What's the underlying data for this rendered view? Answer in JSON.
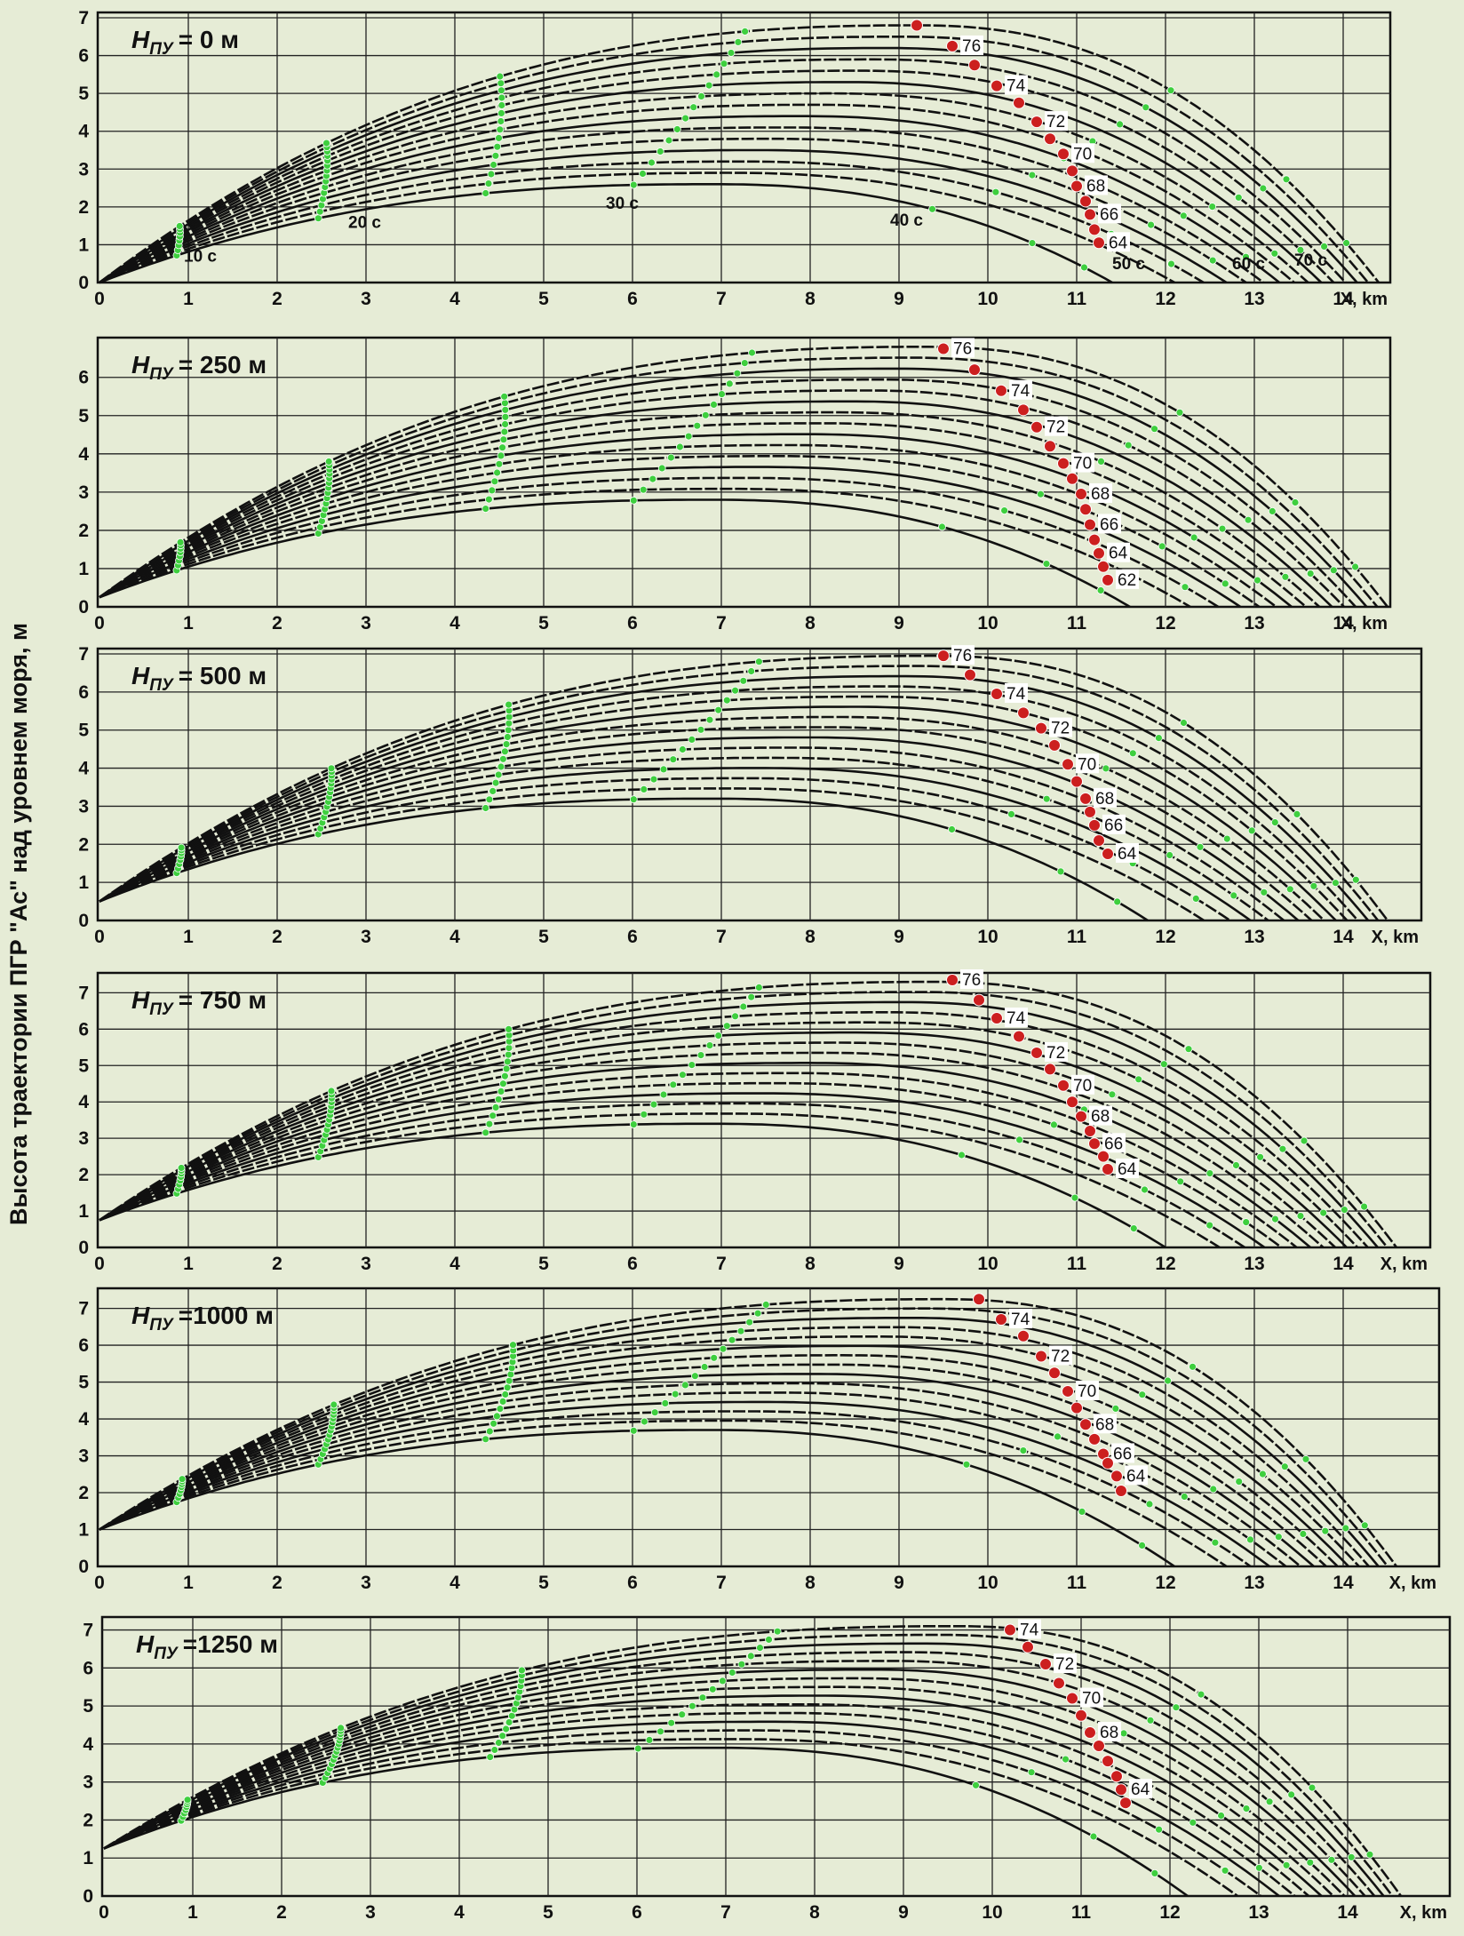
{
  "chart_data": {
    "type": "line",
    "y_axis_label": "Высота траектории ПГР \"Ас\" над уровнем моря, м",
    "xlabel": "X, km",
    "colors": {
      "background": "#e6ecd6",
      "trajectory": "#111111",
      "time_marker": "#3ecf3e",
      "angle_marker": "#cc1f1f"
    },
    "panels": [
      {
        "title_prefix": "H",
        "title_sub": "ПУ",
        "title_value": "= 0 м",
        "x_ticks": [
          "0",
          "1",
          "2",
          "3",
          "4",
          "5",
          "6",
          "7",
          "8",
          "9",
          "10",
          "11",
          "12",
          "13",
          "14"
        ],
        "y_ticks": [
          "0",
          "1",
          "2",
          "3",
          "4",
          "5",
          "6",
          "7"
        ],
        "xlim": [
          0,
          14.6
        ],
        "ylim": [
          0,
          7
        ],
        "start_height": 0,
        "curve_count": 15,
        "apex": {
          "x_min": 6.9,
          "x_max": 9.2,
          "y_min": 2.6,
          "y_max": 6.8
        },
        "range": {
          "min": 11.4,
          "max": 14.4
        },
        "angle_markers": [
          {
            "x": 9.2,
            "y": 6.8,
            "label": ""
          },
          {
            "x": 9.6,
            "y": 6.25,
            "label": "76"
          },
          {
            "x": 9.85,
            "y": 5.75,
            "label": ""
          },
          {
            "x": 10.1,
            "y": 5.2,
            "label": "74"
          },
          {
            "x": 10.35,
            "y": 4.75,
            "label": ""
          },
          {
            "x": 10.55,
            "y": 4.25,
            "label": "72"
          },
          {
            "x": 10.7,
            "y": 3.8,
            "label": ""
          },
          {
            "x": 10.85,
            "y": 3.4,
            "label": "70"
          },
          {
            "x": 10.95,
            "y": 2.95,
            "label": ""
          },
          {
            "x": 11.0,
            "y": 2.55,
            "label": "68"
          },
          {
            "x": 11.1,
            "y": 2.15,
            "label": ""
          },
          {
            "x": 11.15,
            "y": 1.8,
            "label": "66"
          },
          {
            "x": 11.2,
            "y": 1.4,
            "label": ""
          },
          {
            "x": 11.25,
            "y": 1.05,
            "label": "64"
          }
        ],
        "time_labels": [
          {
            "text": "10 с",
            "x": 0.95,
            "y": 0.55
          },
          {
            "text": "20 с",
            "x": 2.8,
            "y": 1.45
          },
          {
            "text": "30 с",
            "x": 5.7,
            "y": 1.95
          },
          {
            "text": "40 с",
            "x": 8.9,
            "y": 1.5
          },
          {
            "text": "50 с",
            "x": 11.4,
            "y": 0.35
          },
          {
            "text": "60 с",
            "x": 12.75,
            "y": 0.35
          },
          {
            "text": "70 с",
            "x": 13.45,
            "y": 0.45
          }
        ]
      },
      {
        "title_prefix": "H",
        "title_sub": "ПУ",
        "title_value": "= 250 м",
        "x_ticks": [
          "0",
          "1",
          "2",
          "3",
          "4",
          "5",
          "6",
          "7",
          "8",
          "9",
          "10",
          "11",
          "12",
          "13",
          "14"
        ],
        "y_ticks": [
          "0",
          "1",
          "2",
          "3",
          "4",
          "5",
          "6"
        ],
        "xlim": [
          0,
          14.6
        ],
        "ylim": [
          0,
          6.9
        ],
        "start_height": 0.25,
        "curve_count": 15,
        "apex": {
          "x_min": 6.9,
          "x_max": 9.3,
          "y_min": 2.8,
          "y_max": 6.8
        },
        "range": {
          "min": 11.6,
          "max": 14.5
        },
        "angle_markers": [
          {
            "x": 9.5,
            "y": 6.75,
            "label": "76"
          },
          {
            "x": 9.85,
            "y": 6.2,
            "label": ""
          },
          {
            "x": 10.15,
            "y": 5.65,
            "label": "74"
          },
          {
            "x": 10.4,
            "y": 5.15,
            "label": ""
          },
          {
            "x": 10.55,
            "y": 4.7,
            "label": "72"
          },
          {
            "x": 10.7,
            "y": 4.2,
            "label": ""
          },
          {
            "x": 10.85,
            "y": 3.75,
            "label": "70"
          },
          {
            "x": 10.95,
            "y": 3.35,
            "label": ""
          },
          {
            "x": 11.05,
            "y": 2.95,
            "label": "68"
          },
          {
            "x": 11.1,
            "y": 2.55,
            "label": ""
          },
          {
            "x": 11.15,
            "y": 2.15,
            "label": "66"
          },
          {
            "x": 11.2,
            "y": 1.75,
            "label": ""
          },
          {
            "x": 11.25,
            "y": 1.4,
            "label": "64"
          },
          {
            "x": 11.3,
            "y": 1.05,
            "label": ""
          },
          {
            "x": 11.35,
            "y": 0.7,
            "label": "62"
          }
        ],
        "time_labels": []
      },
      {
        "title_prefix": "H",
        "title_sub": "ПУ",
        "title_value": "= 500 м",
        "x_ticks": [
          "0",
          "1",
          "2",
          "3",
          "4",
          "5",
          "6",
          "7",
          "8",
          "9",
          "10",
          "11",
          "12",
          "13",
          "14"
        ],
        "y_ticks": [
          "0",
          "1",
          "2",
          "3",
          "4",
          "5",
          "6",
          "7"
        ],
        "xlim": [
          0,
          14.6
        ],
        "ylim": [
          0,
          7
        ],
        "start_height": 0.5,
        "curve_count": 15,
        "apex": {
          "x_min": 6.9,
          "x_max": 9.4,
          "y_min": 3.2,
          "y_max": 6.95
        },
        "range": {
          "min": 11.8,
          "max": 14.5
        },
        "angle_markers": [
          {
            "x": 9.5,
            "y": 6.95,
            "label": "76"
          },
          {
            "x": 9.8,
            "y": 6.45,
            "label": ""
          },
          {
            "x": 10.1,
            "y": 5.95,
            "label": "74"
          },
          {
            "x": 10.4,
            "y": 5.45,
            "label": ""
          },
          {
            "x": 10.6,
            "y": 5.05,
            "label": "72"
          },
          {
            "x": 10.75,
            "y": 4.6,
            "label": ""
          },
          {
            "x": 10.9,
            "y": 4.1,
            "label": "70"
          },
          {
            "x": 11.0,
            "y": 3.65,
            "label": ""
          },
          {
            "x": 11.1,
            "y": 3.2,
            "label": "68"
          },
          {
            "x": 11.15,
            "y": 2.85,
            "label": ""
          },
          {
            "x": 11.2,
            "y": 2.5,
            "label": "66"
          },
          {
            "x": 11.25,
            "y": 2.1,
            "label": ""
          },
          {
            "x": 11.35,
            "y": 1.75,
            "label": "64"
          }
        ],
        "time_labels": []
      },
      {
        "title_prefix": "H",
        "title_sub": "ПУ",
        "title_value": "= 750 м",
        "x_ticks": [
          "0",
          "1",
          "2",
          "3",
          "4",
          "5",
          "6",
          "7",
          "8",
          "9",
          "10",
          "11",
          "12",
          "13",
          "14"
        ],
        "y_ticks": [
          "0",
          "1",
          "2",
          "3",
          "4",
          "5",
          "6",
          "7"
        ],
        "xlim": [
          0,
          14.6
        ],
        "ylim": [
          0,
          7.4
        ],
        "start_height": 0.75,
        "curve_count": 15,
        "apex": {
          "x_min": 6.9,
          "x_max": 9.4,
          "y_min": 3.4,
          "y_max": 7.3
        },
        "range": {
          "min": 12.0,
          "max": 14.6
        },
        "angle_markers": [
          {
            "x": 9.6,
            "y": 7.35,
            "label": "76"
          },
          {
            "x": 9.9,
            "y": 6.8,
            "label": ""
          },
          {
            "x": 10.1,
            "y": 6.3,
            "label": "74"
          },
          {
            "x": 10.35,
            "y": 5.8,
            "label": ""
          },
          {
            "x": 10.55,
            "y": 5.35,
            "label": "72"
          },
          {
            "x": 10.7,
            "y": 4.9,
            "label": ""
          },
          {
            "x": 10.85,
            "y": 4.45,
            "label": "70"
          },
          {
            "x": 10.95,
            "y": 4.0,
            "label": ""
          },
          {
            "x": 11.05,
            "y": 3.6,
            "label": "68"
          },
          {
            "x": 11.15,
            "y": 3.2,
            "label": ""
          },
          {
            "x": 11.2,
            "y": 2.85,
            "label": "66"
          },
          {
            "x": 11.3,
            "y": 2.5,
            "label": ""
          },
          {
            "x": 11.35,
            "y": 2.15,
            "label": "64"
          }
        ],
        "time_labels": []
      },
      {
        "title_prefix": "H",
        "title_sub": "ПУ",
        "title_value": "=1000 м",
        "x_ticks": [
          "0",
          "1",
          "2",
          "3",
          "4",
          "5",
          "6",
          "7",
          "8",
          "9",
          "10",
          "11",
          "12",
          "13",
          "14"
        ],
        "y_ticks": [
          "0",
          "1",
          "2",
          "3",
          "4",
          "5",
          "6",
          "7"
        ],
        "xlim": [
          0,
          14.6
        ],
        "ylim": [
          0,
          7.4
        ],
        "start_height": 1.0,
        "curve_count": 15,
        "apex": {
          "x_min": 6.9,
          "x_max": 9.5,
          "y_min": 3.7,
          "y_max": 7.25
        },
        "range": {
          "min": 12.1,
          "max": 14.6
        },
        "angle_markers": [
          {
            "x": 9.9,
            "y": 7.25,
            "label": ""
          },
          {
            "x": 10.15,
            "y": 6.7,
            "label": "74"
          },
          {
            "x": 10.4,
            "y": 6.25,
            "label": ""
          },
          {
            "x": 10.6,
            "y": 5.7,
            "label": "72"
          },
          {
            "x": 10.75,
            "y": 5.25,
            "label": ""
          },
          {
            "x": 10.9,
            "y": 4.75,
            "label": "70"
          },
          {
            "x": 11.0,
            "y": 4.3,
            "label": ""
          },
          {
            "x": 11.1,
            "y": 3.85,
            "label": "68"
          },
          {
            "x": 11.2,
            "y": 3.45,
            "label": ""
          },
          {
            "x": 11.3,
            "y": 3.05,
            "label": "66"
          },
          {
            "x": 11.35,
            "y": 2.8,
            "label": ""
          },
          {
            "x": 11.45,
            "y": 2.45,
            "label": "64"
          },
          {
            "x": 11.5,
            "y": 2.05,
            "label": ""
          }
        ],
        "time_labels": []
      },
      {
        "title_prefix": "H",
        "title_sub": "ПУ",
        "title_value": "=1250 м",
        "x_ticks": [
          "0",
          "1",
          "2",
          "3",
          "4",
          "5",
          "6",
          "7",
          "8",
          "9",
          "10",
          "11",
          "12",
          "13",
          "14"
        ],
        "y_ticks": [
          "0",
          "1",
          "2",
          "3",
          "4",
          "5",
          "6",
          "7"
        ],
        "xlim": [
          0,
          14.6
        ],
        "ylim": [
          0,
          7.2
        ],
        "start_height": 1.25,
        "curve_count": 15,
        "apex": {
          "x_min": 6.9,
          "x_max": 9.6,
          "y_min": 3.9,
          "y_max": 7.1
        },
        "range": {
          "min": 12.2,
          "max": 14.6
        },
        "angle_markers": [
          {
            "x": 10.2,
            "y": 7.0,
            "label": "74"
          },
          {
            "x": 10.4,
            "y": 6.55,
            "label": ""
          },
          {
            "x": 10.6,
            "y": 6.1,
            "label": "72"
          },
          {
            "x": 10.75,
            "y": 5.6,
            "label": ""
          },
          {
            "x": 10.9,
            "y": 5.2,
            "label": "70"
          },
          {
            "x": 11.0,
            "y": 4.75,
            "label": ""
          },
          {
            "x": 11.1,
            "y": 4.3,
            "label": "68"
          },
          {
            "x": 11.2,
            "y": 3.95,
            "label": ""
          },
          {
            "x": 11.3,
            "y": 3.55,
            "label": ""
          },
          {
            "x": 11.4,
            "y": 3.15,
            "label": ""
          },
          {
            "x": 11.45,
            "y": 2.8,
            "label": "64"
          },
          {
            "x": 11.5,
            "y": 2.45,
            "label": ""
          }
        ],
        "time_labels": []
      }
    ]
  }
}
